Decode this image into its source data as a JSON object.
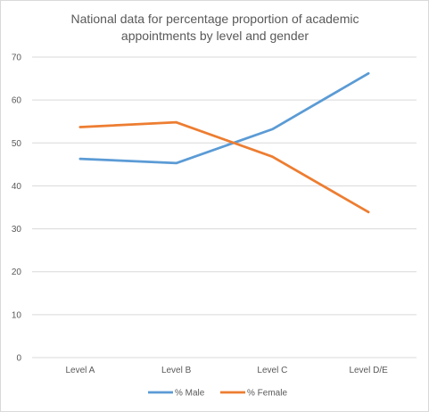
{
  "chart_data": {
    "type": "line",
    "title_lines": [
      "National data for percentage proportion  of academic",
      "appointments by level and gender"
    ],
    "categories": [
      "Level A",
      "Level B",
      "Level C",
      "Level D/E"
    ],
    "series": [
      {
        "name": "% Male",
        "values": [
          46.3,
          45.3,
          53.2,
          66.2
        ],
        "color": "#5b9bd5"
      },
      {
        "name": "% Female",
        "values": [
          53.7,
          54.8,
          46.8,
          33.9
        ],
        "color": "#ed7d31"
      }
    ],
    "yticks": [
      0,
      10,
      20,
      30,
      40,
      50,
      60,
      70
    ],
    "ylim": [
      0,
      70
    ],
    "grid": true,
    "legend_position": "bottom",
    "gridline_color": "#d9d9d9"
  }
}
